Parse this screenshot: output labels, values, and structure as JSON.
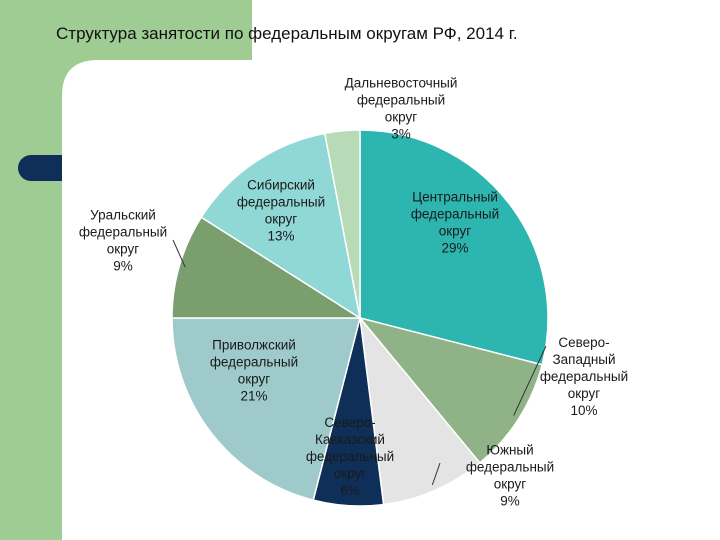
{
  "title": "Структура занятости  по федеральным округам РФ, 2014 г.",
  "chart_data": {
    "type": "pie",
    "title": "Структура занятости  по федеральным округам РФ, 2014 г.",
    "slices": [
      {
        "name": "Центральный федеральный округ",
        "value": 29,
        "lines": [
          "Центральный",
          "федеральный",
          "округ",
          "29%"
        ],
        "color": "#2db5b0"
      },
      {
        "name": "Северо-Западный федеральный округ",
        "value": 10,
        "lines": [
          "Северо-",
          "Западный",
          "федеральный",
          "округ",
          "10%"
        ],
        "color": "#8fb387"
      },
      {
        "name": "Южный федеральный округ",
        "value": 9,
        "lines": [
          "Южный",
          "федеральный",
          "округ",
          "9%"
        ],
        "color": "#e4e4e4"
      },
      {
        "name": "Северо-Кавказский федеральный округ",
        "value": 6,
        "lines": [
          "Северо-",
          "Кавказский",
          "федеральный",
          "округ",
          "6%"
        ],
        "color": "#0e2f57"
      },
      {
        "name": "Приволжский федеральный округ",
        "value": 21,
        "lines": [
          "Приволжский",
          "федеральный",
          "округ",
          "21%"
        ],
        "color": "#9ecacb"
      },
      {
        "name": "Уральский федеральный округ",
        "value": 9,
        "lines": [
          "Уральский",
          "федеральный",
          "округ",
          "9%"
        ],
        "color": "#7a9e6e"
      },
      {
        "name": "Сибирский федеральный округ",
        "value": 13,
        "lines": [
          "Сибирский",
          "федеральный",
          "округ",
          "13%"
        ],
        "color": "#8fd8d6"
      },
      {
        "name": "Дальневосточный федеральный округ",
        "value": 3,
        "lines": [
          "Дальневосточный",
          "федеральный",
          "округ",
          "3%"
        ],
        "color": "#b7dbb6"
      }
    ]
  },
  "colors": {
    "background": "#ffffff",
    "accent_green": "#9fcc93",
    "band_navy": "#0e2f57",
    "inner_panel": "#ffffff",
    "label_text": "#1a1a1a"
  }
}
